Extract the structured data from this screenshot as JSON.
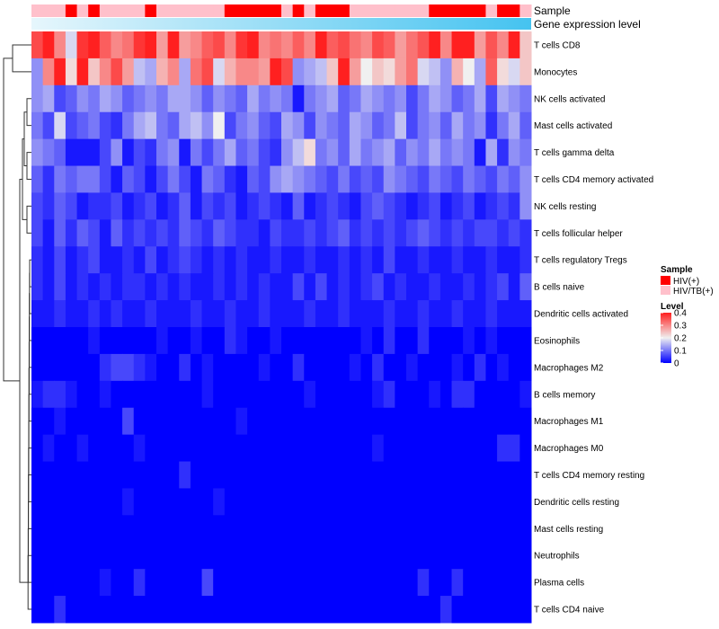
{
  "chart_data": {
    "type": "heatmap",
    "title": "",
    "annotation_labels": {
      "sample": "Sample",
      "gene_expression": "Gene expression level"
    },
    "rows": [
      "T cells CD8",
      "Monocytes",
      "NK cells activated",
      "Mast cells activated",
      "T cells gamma delta",
      "T cells CD4 memory activated",
      "NK cells resting",
      "T cells follicular helper",
      "T cells regulatory  Tregs",
      "B cells naive",
      "Dendritic cells activated",
      "Eosinophils",
      "Macrophages M2",
      "B cells memory",
      "Macrophages M1",
      "Macrophages M0",
      "T cells CD4 memory resting",
      "Dendritic cells resting",
      "Mast cells resting",
      "Neutrophils",
      "Plasma cells",
      "T cells CD4 naive"
    ],
    "n_columns": 44,
    "sample_groups": [
      "HIV/TB(+)",
      "HIV/TB(+)",
      "HIV/TB(+)",
      "HIV(+)",
      "HIV/TB(+)",
      "HIV(+)",
      "HIV/TB(+)",
      "HIV/TB(+)",
      "HIV/TB(+)",
      "HIV/TB(+)",
      "HIV(+)",
      "HIV/TB(+)",
      "HIV/TB(+)",
      "HIV/TB(+)",
      "HIV/TB(+)",
      "HIV/TB(+)",
      "HIV/TB(+)",
      "HIV(+)",
      "HIV(+)",
      "HIV(+)",
      "HIV(+)",
      "HIV(+)",
      "HIV/TB(+)",
      "HIV(+)",
      "HIV/TB(+)",
      "HIV(+)",
      "HIV(+)",
      "HIV(+)",
      "HIV/TB(+)",
      "HIV/TB(+)",
      "HIV/TB(+)",
      "HIV/TB(+)",
      "HIV/TB(+)",
      "HIV/TB(+)",
      "HIV/TB(+)",
      "HIV(+)",
      "HIV(+)",
      "HIV(+)",
      "HIV(+)",
      "HIV(+)",
      "HIV/TB(+)",
      "HIV(+)",
      "HIV(+)",
      "HIV/TB(+)"
    ],
    "values": [
      [
        0.36,
        0.4,
        0.3,
        0.18,
        0.38,
        0.4,
        0.34,
        0.3,
        0.32,
        0.38,
        0.4,
        0.28,
        0.4,
        0.28,
        0.3,
        0.34,
        0.36,
        0.3,
        0.38,
        0.4,
        0.3,
        0.32,
        0.3,
        0.34,
        0.3,
        0.4,
        0.34,
        0.36,
        0.32,
        0.3,
        0.36,
        0.34,
        0.28,
        0.32,
        0.35,
        0.4,
        0.3,
        0.4,
        0.4,
        0.28,
        0.35,
        0.3,
        0.4,
        0.24
      ],
      [
        0.12,
        0.3,
        0.4,
        0.22,
        0.4,
        0.24,
        0.3,
        0.36,
        0.28,
        0.16,
        0.14,
        0.26,
        0.3,
        0.14,
        0.32,
        0.36,
        0.18,
        0.26,
        0.3,
        0.3,
        0.28,
        0.4,
        0.36,
        0.12,
        0.14,
        0.16,
        0.24,
        0.4,
        0.28,
        0.2,
        0.24,
        0.22,
        0.28,
        0.32,
        0.18,
        0.16,
        0.12,
        0.26,
        0.2,
        0.14,
        0.34,
        0.22,
        0.18,
        0.24
      ],
      [
        0.12,
        0.14,
        0.06,
        0.08,
        0.12,
        0.1,
        0.14,
        0.12,
        0.08,
        0.1,
        0.12,
        0.1,
        0.14,
        0.14,
        0.12,
        0.08,
        0.12,
        0.1,
        0.08,
        0.14,
        0.1,
        0.12,
        0.1,
        0.02,
        0.1,
        0.12,
        0.14,
        0.08,
        0.1,
        0.14,
        0.12,
        0.1,
        0.12,
        0.06,
        0.1,
        0.14,
        0.12,
        0.08,
        0.1,
        0.14,
        0.06,
        0.14,
        0.12,
        0.1
      ],
      [
        0.1,
        0.06,
        0.18,
        0.06,
        0.08,
        0.1,
        0.06,
        0.04,
        0.1,
        0.14,
        0.16,
        0.1,
        0.08,
        0.14,
        0.16,
        0.12,
        0.2,
        0.06,
        0.1,
        0.12,
        0.08,
        0.06,
        0.14,
        0.12,
        0.06,
        0.12,
        0.1,
        0.08,
        0.14,
        0.12,
        0.08,
        0.1,
        0.16,
        0.06,
        0.1,
        0.12,
        0.08,
        0.14,
        0.1,
        0.12,
        0.04,
        0.1,
        0.14,
        0.08
      ],
      [
        0.12,
        0.1,
        0.08,
        0.02,
        0.02,
        0.02,
        0.06,
        0.12,
        0.02,
        0.06,
        0.04,
        0.1,
        0.12,
        0.02,
        0.1,
        0.06,
        0.1,
        0.14,
        0.08,
        0.1,
        0.06,
        0.04,
        0.12,
        0.16,
        0.22,
        0.1,
        0.12,
        0.08,
        0.14,
        0.1,
        0.12,
        0.14,
        0.08,
        0.12,
        0.1,
        0.14,
        0.1,
        0.12,
        0.1,
        0.02,
        0.14,
        0.04,
        0.12,
        0.1
      ],
      [
        0.08,
        0.04,
        0.1,
        0.08,
        0.1,
        0.1,
        0.06,
        0.02,
        0.08,
        0.06,
        0.02,
        0.06,
        0.1,
        0.06,
        0.02,
        0.1,
        0.08,
        0.04,
        0.02,
        0.08,
        0.06,
        0.12,
        0.14,
        0.12,
        0.1,
        0.08,
        0.06,
        0.1,
        0.06,
        0.08,
        0.06,
        0.12,
        0.1,
        0.08,
        0.06,
        0.1,
        0.08,
        0.06,
        0.1,
        0.08,
        0.06,
        0.1,
        0.08,
        0.12
      ],
      [
        0.06,
        0.04,
        0.08,
        0.06,
        0.02,
        0.04,
        0.04,
        0.06,
        0.02,
        0.04,
        0.06,
        0.02,
        0.04,
        0.08,
        0.02,
        0.06,
        0.04,
        0.06,
        0.02,
        0.04,
        0.06,
        0.04,
        0.02,
        0.08,
        0.02,
        0.04,
        0.06,
        0.04,
        0.02,
        0.06,
        0.08,
        0.06,
        0.04,
        0.02,
        0.04,
        0.06,
        0.02,
        0.04,
        0.06,
        0.02,
        0.04,
        0.06,
        0.04,
        0.12
      ],
      [
        0.06,
        0.02,
        0.08,
        0.04,
        0.08,
        0.06,
        0.02,
        0.08,
        0.04,
        0.06,
        0.04,
        0.06,
        0.04,
        0.08,
        0.06,
        0.04,
        0.08,
        0.06,
        0.04,
        0.04,
        0.02,
        0.06,
        0.04,
        0.04,
        0.06,
        0.04,
        0.06,
        0.08,
        0.04,
        0.06,
        0.04,
        0.06,
        0.04,
        0.06,
        0.08,
        0.06,
        0.04,
        0.06,
        0.04,
        0.06,
        0.06,
        0.04,
        0.06,
        0.04
      ],
      [
        0.04,
        0.02,
        0.06,
        0.02,
        0.04,
        0.06,
        0.02,
        0.02,
        0.04,
        0.02,
        0.06,
        0.02,
        0.04,
        0.06,
        0.04,
        0.02,
        0.04,
        0.02,
        0.04,
        0.02,
        0.02,
        0.04,
        0.02,
        0.02,
        0.04,
        0.02,
        0.02,
        0.04,
        0.02,
        0.04,
        0.02,
        0.06,
        0.02,
        0.02,
        0.04,
        0.02,
        0.02,
        0.04,
        0.02,
        0.02,
        0.04,
        0.02,
        0.02,
        0.04
      ],
      [
        0.04,
        0.02,
        0.06,
        0.02,
        0.04,
        0.02,
        0.04,
        0.02,
        0.04,
        0.04,
        0.02,
        0.04,
        0.02,
        0.04,
        0.02,
        0.02,
        0.04,
        0.02,
        0.04,
        0.02,
        0.04,
        0.02,
        0.02,
        0.06,
        0.02,
        0.06,
        0.02,
        0.04,
        0.02,
        0.04,
        0.06,
        0.02,
        0.04,
        0.02,
        0.02,
        0.04,
        0.02,
        0.02,
        0.04,
        0.02,
        0.04,
        0.06,
        0.02,
        0.08
      ],
      [
        0.02,
        0.02,
        0.04,
        0.02,
        0.02,
        0.04,
        0.02,
        0.04,
        0.02,
        0.02,
        0.04,
        0.02,
        0.02,
        0.02,
        0.04,
        0.02,
        0.02,
        0.04,
        0.02,
        0.02,
        0.04,
        0.02,
        0.02,
        0.02,
        0.04,
        0.02,
        0.02,
        0.04,
        0.02,
        0.02,
        0.02,
        0.04,
        0.02,
        0.02,
        0.04,
        0.02,
        0.02,
        0.04,
        0.02,
        0.02,
        0.04,
        0.02,
        0.02,
        0.02
      ],
      [
        0.0,
        0.0,
        0.0,
        0.0,
        0.0,
        0.02,
        0.0,
        0.0,
        0.0,
        0.0,
        0.0,
        0.02,
        0.0,
        0.0,
        0.02,
        0.0,
        0.0,
        0.04,
        0.02,
        0.0,
        0.0,
        0.02,
        0.0,
        0.0,
        0.0,
        0.0,
        0.0,
        0.0,
        0.0,
        0.02,
        0.0,
        0.04,
        0.0,
        0.0,
        0.04,
        0.0,
        0.0,
        0.0,
        0.02,
        0.0,
        0.02,
        0.0,
        0.0,
        0.0
      ],
      [
        0.0,
        0.0,
        0.0,
        0.0,
        0.0,
        0.0,
        0.04,
        0.06,
        0.06,
        0.04,
        0.02,
        0.0,
        0.0,
        0.04,
        0.0,
        0.02,
        0.0,
        0.0,
        0.0,
        0.0,
        0.02,
        0.0,
        0.0,
        0.04,
        0.0,
        0.0,
        0.0,
        0.0,
        0.02,
        0.0,
        0.04,
        0.0,
        0.0,
        0.02,
        0.0,
        0.0,
        0.0,
        0.02,
        0.0,
        0.04,
        0.0,
        0.02,
        0.0,
        0.0
      ],
      [
        0.02,
        0.04,
        0.04,
        0.02,
        0.0,
        0.0,
        0.02,
        0.0,
        0.0,
        0.0,
        0.0,
        0.0,
        0.0,
        0.0,
        0.0,
        0.02,
        0.0,
        0.0,
        0.0,
        0.0,
        0.0,
        0.0,
        0.0,
        0.0,
        0.02,
        0.0,
        0.0,
        0.0,
        0.0,
        0.0,
        0.02,
        0.04,
        0.0,
        0.0,
        0.0,
        0.02,
        0.0,
        0.04,
        0.04,
        0.0,
        0.0,
        0.0,
        0.0,
        0.02
      ],
      [
        0.0,
        0.0,
        0.02,
        0.0,
        0.0,
        0.0,
        0.0,
        0.0,
        0.06,
        0.0,
        0.0,
        0.0,
        0.0,
        0.0,
        0.0,
        0.0,
        0.0,
        0.0,
        0.02,
        0.0,
        0.0,
        0.0,
        0.0,
        0.0,
        0.0,
        0.0,
        0.0,
        0.0,
        0.0,
        0.0,
        0.0,
        0.0,
        0.0,
        0.0,
        0.0,
        0.0,
        0.0,
        0.0,
        0.0,
        0.0,
        0.0,
        0.0,
        0.0,
        0.0
      ],
      [
        0.0,
        0.02,
        0.0,
        0.0,
        0.02,
        0.0,
        0.0,
        0.0,
        0.0,
        0.02,
        0.0,
        0.0,
        0.0,
        0.0,
        0.0,
        0.0,
        0.0,
        0.0,
        0.0,
        0.0,
        0.0,
        0.0,
        0.0,
        0.0,
        0.0,
        0.0,
        0.0,
        0.0,
        0.0,
        0.0,
        0.02,
        0.0,
        0.0,
        0.0,
        0.0,
        0.0,
        0.0,
        0.0,
        0.0,
        0.0,
        0.0,
        0.04,
        0.04,
        0.0
      ],
      [
        0.0,
        0.0,
        0.0,
        0.0,
        0.0,
        0.0,
        0.0,
        0.0,
        0.0,
        0.0,
        0.0,
        0.0,
        0.0,
        0.04,
        0.0,
        0.0,
        0.0,
        0.0,
        0.0,
        0.0,
        0.0,
        0.0,
        0.0,
        0.0,
        0.0,
        0.0,
        0.0,
        0.0,
        0.0,
        0.0,
        0.0,
        0.0,
        0.0,
        0.0,
        0.0,
        0.0,
        0.0,
        0.0,
        0.0,
        0.0,
        0.0,
        0.0,
        0.0,
        0.0
      ],
      [
        0.0,
        0.0,
        0.0,
        0.0,
        0.0,
        0.0,
        0.0,
        0.0,
        0.02,
        0.0,
        0.0,
        0.0,
        0.0,
        0.0,
        0.0,
        0.0,
        0.02,
        0.0,
        0.0,
        0.0,
        0.0,
        0.0,
        0.0,
        0.0,
        0.0,
        0.0,
        0.0,
        0.0,
        0.0,
        0.0,
        0.0,
        0.0,
        0.0,
        0.0,
        0.0,
        0.0,
        0.0,
        0.0,
        0.0,
        0.0,
        0.0,
        0.0,
        0.0,
        0.0
      ],
      [
        0.0,
        0.0,
        0.0,
        0.0,
        0.0,
        0.0,
        0.0,
        0.0,
        0.0,
        0.0,
        0.0,
        0.0,
        0.0,
        0.0,
        0.0,
        0.0,
        0.0,
        0.0,
        0.0,
        0.0,
        0.0,
        0.0,
        0.0,
        0.0,
        0.0,
        0.0,
        0.0,
        0.0,
        0.0,
        0.0,
        0.0,
        0.0,
        0.0,
        0.0,
        0.0,
        0.0,
        0.0,
        0.0,
        0.0,
        0.0,
        0.0,
        0.0,
        0.0,
        0.0
      ],
      [
        0.0,
        0.0,
        0.0,
        0.0,
        0.0,
        0.0,
        0.0,
        0.0,
        0.0,
        0.0,
        0.0,
        0.0,
        0.0,
        0.0,
        0.0,
        0.0,
        0.0,
        0.0,
        0.0,
        0.0,
        0.0,
        0.0,
        0.0,
        0.0,
        0.0,
        0.0,
        0.0,
        0.0,
        0.0,
        0.0,
        0.0,
        0.0,
        0.0,
        0.0,
        0.0,
        0.0,
        0.0,
        0.0,
        0.0,
        0.0,
        0.0,
        0.0,
        0.0,
        0.0
      ],
      [
        0.0,
        0.0,
        0.0,
        0.0,
        0.0,
        0.0,
        0.02,
        0.0,
        0.0,
        0.04,
        0.0,
        0.0,
        0.0,
        0.0,
        0.0,
        0.06,
        0.0,
        0.0,
        0.0,
        0.0,
        0.0,
        0.0,
        0.0,
        0.0,
        0.0,
        0.0,
        0.0,
        0.0,
        0.0,
        0.0,
        0.0,
        0.0,
        0.0,
        0.0,
        0.04,
        0.0,
        0.0,
        0.04,
        0.0,
        0.0,
        0.0,
        0.0,
        0.0,
        0.0
      ],
      [
        0.0,
        0.0,
        0.04,
        0.0,
        0.0,
        0.0,
        0.0,
        0.0,
        0.0,
        0.0,
        0.0,
        0.0,
        0.0,
        0.0,
        0.0,
        0.0,
        0.0,
        0.0,
        0.0,
        0.0,
        0.0,
        0.0,
        0.0,
        0.0,
        0.0,
        0.0,
        0.0,
        0.0,
        0.0,
        0.0,
        0.0,
        0.0,
        0.0,
        0.0,
        0.0,
        0.0,
        0.04,
        0.0,
        0.0,
        0.0,
        0.0,
        0.0,
        0.0,
        0.0
      ]
    ],
    "legend": {
      "sample_title": "Sample",
      "sample_items": [
        {
          "label": "HIV(+)",
          "color": "#ff0000"
        },
        {
          "label": "HIV/TB(+)",
          "color": "#ffc0cb"
        }
      ],
      "level_title": "Level",
      "level_ticks": [
        "0.4",
        "0.3",
        "0.2",
        "0.1",
        "0"
      ],
      "level_range": [
        0,
        0.4
      ]
    },
    "colors": {
      "low": "#0000ff",
      "mid": "#f0f0f0",
      "high": "#ff2020",
      "gene_gradient_start": "#e6f6fc",
      "gene_gradient_end": "#45c3f0"
    }
  }
}
